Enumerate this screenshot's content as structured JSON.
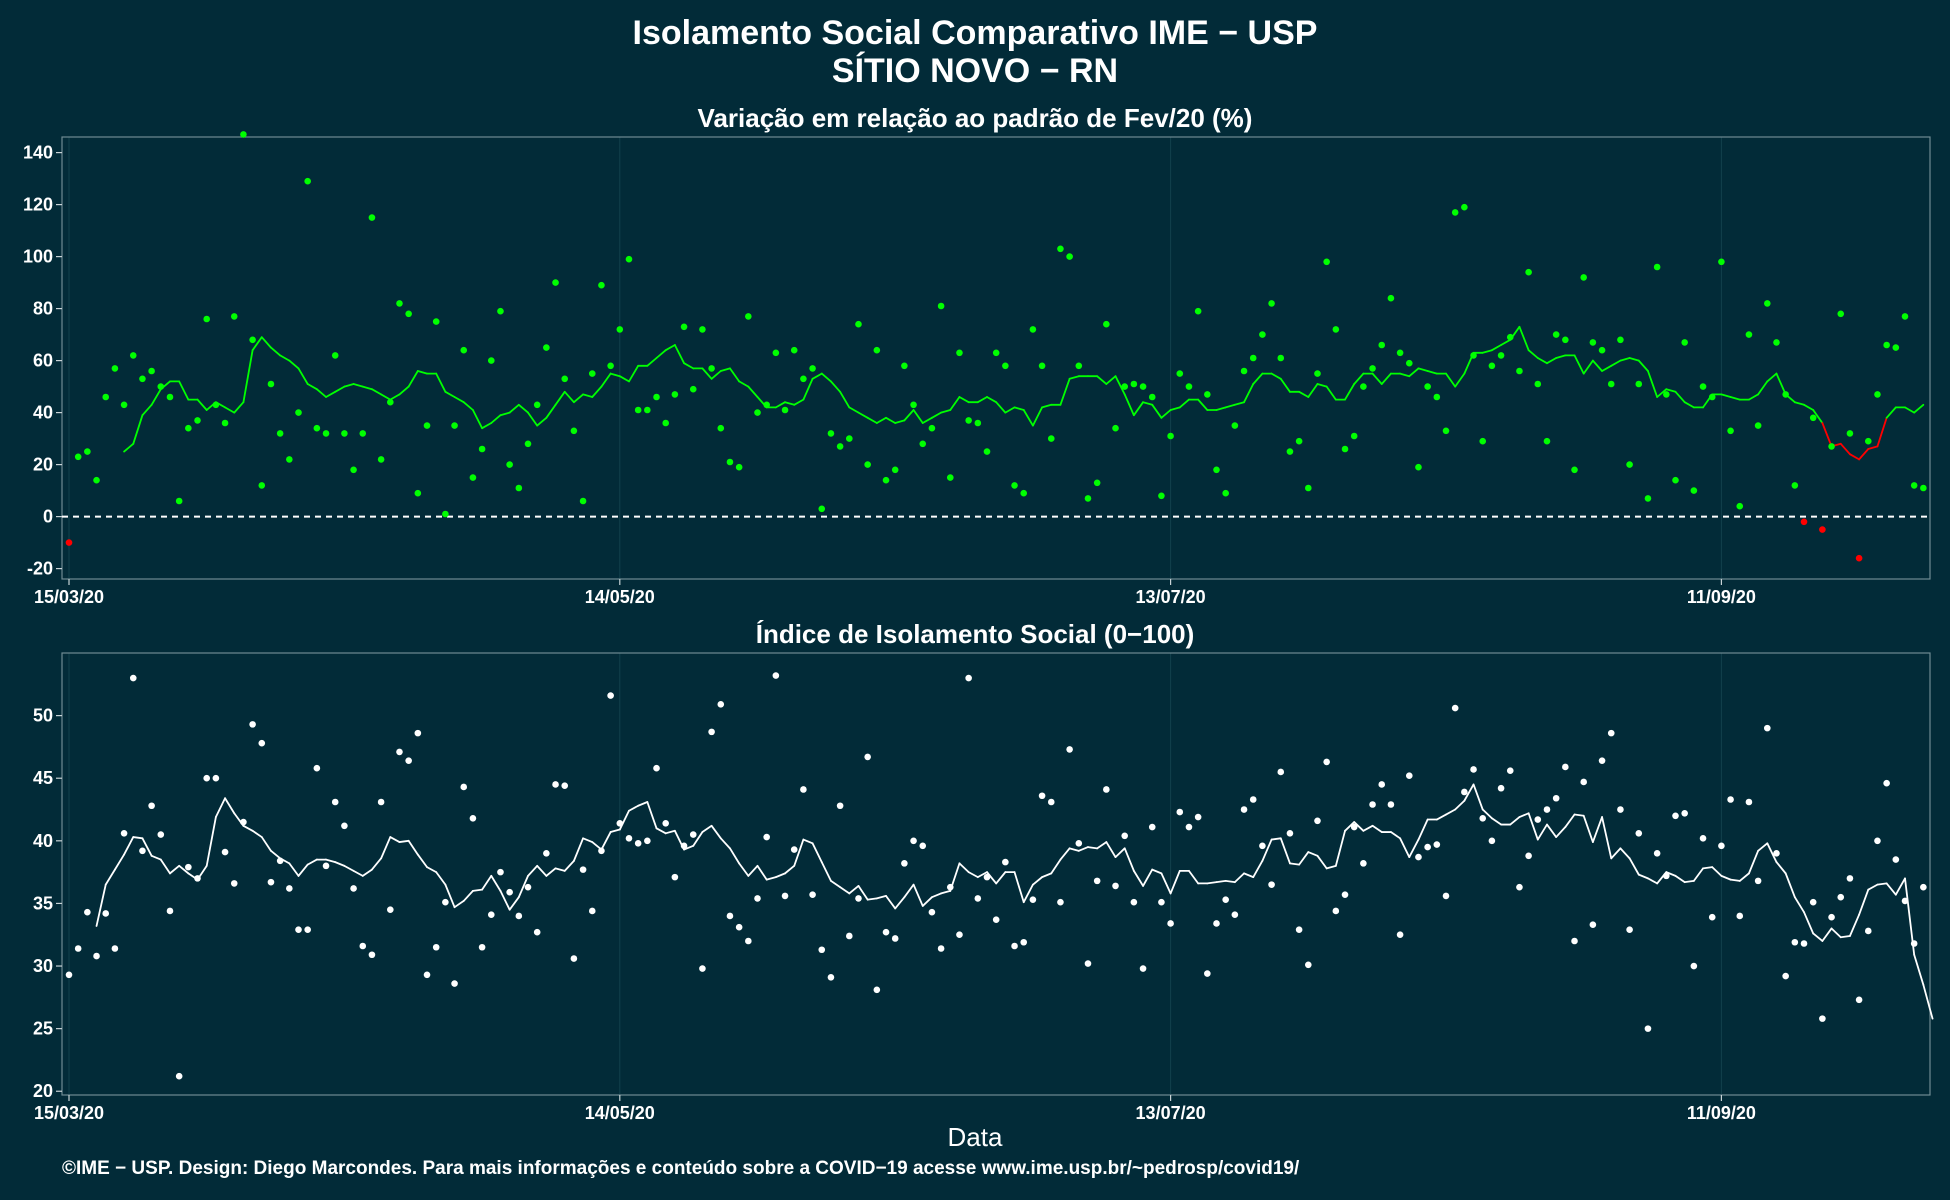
{
  "title": "Isolamento Social Comparativo IME − USP",
  "subtitle": "SÍTIO NOVO − RN",
  "xlabel": "Data",
  "footer": "©IME − USP. Design: Diego Marcondes. Para mais informações e conteúdo sobre a COVID−19 acesse www.ime.usp.br/~pedrosp/covid19/",
  "colors": {
    "background": "#022b38",
    "variation_points": "#00ff00",
    "variation_negative": "#ff0000",
    "index_points": "#ffffff"
  },
  "chart_data": [
    {
      "type": "scatter",
      "title": "Variação em relação ao padrão de Fev/20 (%)",
      "start_date": "2020-03-15",
      "x_ticks": [
        {
          "label": "15/03/20",
          "day": 0
        },
        {
          "label": "14/05/20",
          "day": 60
        },
        {
          "label": "13/07/20",
          "day": 120
        },
        {
          "label": "11/09/20",
          "day": 180
        }
      ],
      "ylim": [
        -24,
        146
      ],
      "y_ticks": [
        -20,
        0,
        20,
        40,
        60,
        80,
        100,
        120,
        140
      ],
      "reference_line": 0,
      "grid": true,
      "series": [
        {
          "name": "",
          "kind": "points",
          "values": [
            -10,
            23,
            25,
            14,
            46,
            57,
            43,
            62,
            53,
            56,
            50,
            46,
            6,
            34,
            37,
            76,
            43,
            36,
            77,
            147,
            68,
            12,
            51,
            32,
            22,
            40,
            129,
            34,
            32,
            62,
            32,
            18,
            32,
            115,
            22,
            44,
            82,
            78,
            9,
            35,
            75,
            1,
            35,
            64,
            15,
            26,
            60,
            79,
            20,
            11,
            28,
            43,
            65,
            90,
            53,
            33,
            6,
            55,
            89,
            58,
            72,
            99,
            41,
            41,
            46,
            36,
            47,
            73,
            49,
            72,
            57,
            34,
            21,
            19,
            77,
            40,
            43,
            63,
            41,
            64,
            53,
            57,
            3,
            32,
            27,
            30,
            74,
            20,
            64,
            14,
            18,
            58,
            43,
            28,
            34,
            81,
            15,
            63,
            37,
            36,
            25,
            63,
            58,
            12,
            9,
            72,
            58,
            30,
            103,
            100,
            58,
            7,
            13,
            74,
            34,
            50,
            51,
            50,
            46,
            8,
            31,
            55,
            50,
            79,
            47,
            18,
            9,
            35,
            56,
            61,
            70,
            82,
            61,
            25,
            29,
            11,
            55,
            98,
            72,
            26,
            31,
            50,
            57,
            66,
            84,
            63,
            59,
            19,
            50,
            46,
            33,
            117,
            119,
            62,
            29,
            58,
            62,
            69,
            56,
            94,
            51,
            29,
            70,
            68,
            18,
            92,
            67,
            64,
            51,
            68,
            20,
            51,
            7,
            96,
            47,
            14,
            67,
            10,
            50,
            46,
            98,
            33,
            4,
            70,
            35,
            82,
            67,
            47,
            12,
            -2,
            38,
            -5,
            27,
            78,
            32,
            -16,
            29,
            47,
            66,
            65,
            77,
            12,
            11
          ]
        },
        {
          "name": "",
          "kind": "moving_average",
          "values": [
            null,
            null,
            null,
            null,
            null,
            null,
            25,
            28,
            39,
            43,
            49,
            52,
            52,
            45,
            45,
            41,
            44,
            42,
            40,
            44,
            64,
            69,
            65,
            62,
            60,
            57,
            51,
            49,
            46,
            48,
            50,
            51,
            50,
            49,
            47,
            45,
            47,
            50,
            56,
            55,
            55,
            48,
            46,
            44,
            41,
            34,
            36,
            39,
            40,
            43,
            40,
            35,
            38,
            43,
            48,
            44,
            47,
            46,
            50,
            55,
            54,
            52,
            58,
            58,
            61,
            64,
            66,
            59,
            57,
            57,
            53,
            56,
            57,
            52,
            50,
            46,
            42,
            42,
            44,
            43,
            45,
            53,
            55,
            52,
            48,
            42,
            40,
            38,
            36,
            38,
            36,
            37,
            41,
            36,
            38,
            40,
            41,
            46,
            44,
            44,
            46,
            44,
            40,
            42,
            41,
            35,
            42,
            43,
            43,
            53,
            54,
            54,
            54,
            51,
            54,
            47,
            39,
            44,
            43,
            38,
            41,
            42,
            45,
            45,
            41,
            41,
            42,
            43,
            44,
            51,
            55,
            55,
            53,
            48,
            48,
            46,
            51,
            50,
            45,
            45,
            51,
            55,
            55,
            51,
            55,
            55,
            54,
            57,
            56,
            55,
            55,
            50,
            55,
            63,
            63,
            64,
            66,
            68,
            73,
            64,
            61,
            59,
            61,
            62,
            62,
            55,
            60,
            56,
            58,
            60,
            61,
            60,
            56,
            46,
            49,
            48,
            44,
            42,
            42,
            47,
            47,
            46,
            45,
            45,
            47,
            52,
            55,
            47,
            44,
            43,
            41,
            36,
            27,
            28,
            24,
            22,
            26,
            27,
            38,
            42,
            42,
            40,
            43,
            null,
            null,
            null,
            null,
            null,
            null
          ]
        }
      ]
    },
    {
      "type": "scatter",
      "title": "Índice de Isolamento Social (0−100)",
      "x_ticks": [
        {
          "label": "15/03/20",
          "day": 0
        },
        {
          "label": "14/05/20",
          "day": 60
        },
        {
          "label": "13/07/20",
          "day": 120
        },
        {
          "label": "11/09/20",
          "day": 180
        }
      ],
      "ylim": [
        19.7,
        55
      ],
      "y_ticks": [
        20,
        25,
        30,
        35,
        40,
        45,
        50
      ],
      "grid": true,
      "series": [
        {
          "name": "",
          "kind": "points",
          "values": [
            29.3,
            31.4,
            34.3,
            30.8,
            34.2,
            31.4,
            40.6,
            53,
            39.2,
            42.8,
            40.5,
            34.4,
            21.2,
            37.9,
            37,
            45,
            45,
            39.1,
            36.6,
            41.5,
            49.3,
            47.8,
            36.7,
            38.4,
            36.2,
            32.9,
            32.9,
            45.8,
            38,
            43.1,
            41.2,
            36.2,
            31.6,
            30.9,
            43.1,
            34.5,
            47.1,
            46.4,
            48.6,
            29.3,
            31.5,
            35.1,
            28.6,
            44.3,
            41.8,
            31.5,
            34.1,
            37.5,
            35.9,
            34,
            36.3,
            32.7,
            39,
            44.5,
            44.4,
            30.6,
            37.7,
            34.4,
            39.2,
            51.6,
            41.4,
            40.2,
            39.8,
            40,
            45.8,
            41.4,
            37.1,
            39.6,
            40.5,
            29.8,
            48.7,
            50.9,
            34,
            33.1,
            32,
            35.4,
            40.3,
            53.2,
            35.6,
            39.3,
            44.1,
            35.7,
            31.3,
            29.1,
            42.8,
            32.4,
            35.4,
            46.7,
            28.1,
            32.7,
            32.2,
            38.2,
            40,
            39.6,
            34.3,
            31.4,
            36.3,
            32.5,
            53,
            35.4,
            37.1,
            33.7,
            38.3,
            31.6,
            31.9,
            35.3,
            43.6,
            43.1,
            35.1,
            47.3,
            39.8,
            30.2,
            36.8,
            44.1,
            36.4,
            40.4,
            35.1,
            29.8,
            41.1,
            35.1,
            33.4,
            42.3,
            41.1,
            41.9,
            29.4,
            33.4,
            35.3,
            34.1,
            42.5,
            43.3,
            39.6,
            36.5,
            45.5,
            40.6,
            32.9,
            30.1,
            41.6,
            46.3,
            34.4,
            35.7,
            41.1,
            38.2,
            42.9,
            44.5,
            42.9,
            32.5,
            45.2,
            38.7,
            39.5,
            39.7,
            35.6,
            50.6,
            43.9,
            45.7,
            41.8,
            40,
            44.2,
            45.6,
            36.3,
            38.8,
            41.7,
            42.5,
            43.4,
            45.9,
            32,
            44.7,
            33.3,
            46.4,
            48.6,
            42.5,
            32.9,
            40.6,
            25,
            39,
            37.2,
            42,
            42.2,
            30,
            40.2,
            33.9,
            39.6,
            43.3,
            34,
            43.1,
            36.8,
            49,
            39,
            29.2,
            31.9,
            31.8,
            35.1,
            25.8,
            33.9,
            35.5,
            37,
            27.3,
            32.8,
            40,
            44.6,
            38.5,
            35.2,
            31.8,
            36.3
          ]
        },
        {
          "name": "",
          "kind": "moving_average",
          "values": [
            null,
            null,
            null,
            33.2,
            36.5,
            37.7,
            38.9,
            40.3,
            40.2,
            38.8,
            38.5,
            37.4,
            38,
            37.4,
            36.9,
            38,
            41.9,
            43.4,
            42.2,
            41.2,
            40.8,
            40.3,
            39.2,
            38.6,
            38.2,
            37.2,
            38.1,
            38.5,
            38.5,
            38.3,
            38,
            37.6,
            37.2,
            37.7,
            38.6,
            40.3,
            39.9,
            40,
            38.9,
            37.9,
            37.5,
            36.5,
            34.7,
            35.2,
            36,
            36.1,
            37.2,
            36,
            34.5,
            35.5,
            37.2,
            38,
            37.2,
            37.8,
            37.6,
            38.4,
            40.2,
            39.9,
            39.3,
            40.7,
            40.9,
            42.4,
            42.8,
            43.1,
            41,
            40.6,
            40.8,
            39.3,
            39.6,
            40.7,
            41.2,
            40.2,
            39.4,
            38.2,
            37.2,
            38,
            36.9,
            37.1,
            37.4,
            38,
            40.1,
            39.8,
            38.3,
            36.8,
            36.3,
            35.8,
            36.4,
            35.3,
            35.4,
            35.6,
            34.6,
            35.5,
            36.5,
            34.8,
            35.5,
            35.8,
            36,
            38.2,
            37.5,
            37.1,
            37.5,
            36.6,
            37.5,
            37.5,
            35.1,
            36.5,
            37.1,
            37.4,
            38.5,
            39.4,
            39.2,
            39.5,
            39.4,
            39.9,
            38.7,
            39.4,
            37.6,
            36.4,
            37.7,
            37.4,
            35.8,
            37.6,
            37.6,
            36.6,
            36.6,
            36.7,
            36.8,
            36.7,
            37.4,
            37.1,
            38.4,
            40.1,
            40.2,
            38.2,
            38.1,
            39.1,
            38.8,
            37.8,
            38,
            40.8,
            41.5,
            40.8,
            41.2,
            40.7,
            40.7,
            40.2,
            38.7,
            40.1,
            41.7,
            41.7,
            42.1,
            42.5,
            43.2,
            44.5,
            42.5,
            41.8,
            41.3,
            41.3,
            41.9,
            42.2,
            40.1,
            41.3,
            40.3,
            41.1,
            42.1,
            42,
            39.9,
            41.9,
            38.6,
            39.4,
            38.6,
            37.3,
            37,
            36.6,
            37.5,
            37.2,
            36.7,
            36.8,
            37.8,
            37.9,
            37.2,
            36.9,
            36.8,
            37.4,
            39.2,
            39.8,
            38.3,
            37.4,
            35.5,
            34.3,
            32.6,
            32,
            33,
            32.3,
            32.4,
            34.1,
            36.1,
            36.5,
            36.6,
            35.7,
            37,
            30.9,
            28.5,
            25.8
          ]
        }
      ]
    }
  ]
}
